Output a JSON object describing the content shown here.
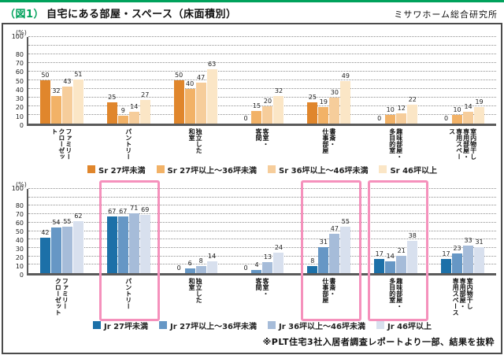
{
  "header": {
    "figure_label": "（図1）",
    "title": "自宅にある部屋・スペース（床面積別）",
    "source": "ミサワホーム総合研究所"
  },
  "footnote": "※PLT住宅3社入居者調査レポートより一部、結果を抜粋",
  "colors": {
    "accent_green": "#00a25c",
    "highlight_pink": "#f591bc",
    "axis_gray": "#5a5a5a",
    "sr_series": [
      "#e0862c",
      "#f2b267",
      "#f6cd9b",
      "#fbe6c6"
    ],
    "jr_series": [
      "#1c70a8",
      "#6697c5",
      "#a6bcd9",
      "#d8e0ee"
    ]
  },
  "chart_data": [
    {
      "type": "bar",
      "unit": "(%)",
      "ylim": [
        0,
        100
      ],
      "gridline_step": 10,
      "grid": "dotted-horizontal",
      "ytick_labels": [
        "100",
        "80",
        "70",
        "60",
        "50",
        "40",
        "30",
        "20",
        "10",
        "0"
      ],
      "legend_position": "bottom-center",
      "categories": [
        "ファミリー\nクローゼット",
        "パントリー",
        "独立した\n和室",
        "客室・\n客間",
        "書斎・\n仕事部屋",
        "趣味部屋・\n多目的室",
        "室内物干し\n専用部屋・\n専用スペース"
      ],
      "series": [
        {
          "name": "Sr 27坪未満",
          "color": "#e0862c",
          "values": [
            50,
            25,
            50,
            0,
            25,
            0,
            0
          ]
        },
        {
          "name": "Sr 27坪以上〜36坪未満",
          "color": "#f2b267",
          "values": [
            32,
            9,
            40,
            15,
            19,
            10,
            10
          ]
        },
        {
          "name": "Sr 36坪以上〜46坪未満",
          "color": "#f6cd9b",
          "values": [
            43,
            14,
            47,
            20,
            30,
            12,
            14
          ]
        },
        {
          "name": "Sr 46坪以上",
          "color": "#fbe6c6",
          "values": [
            51,
            27,
            63,
            32,
            49,
            22,
            19
          ]
        }
      ],
      "highlights": []
    },
    {
      "type": "bar",
      "unit": "(%)",
      "ylim": [
        0,
        100
      ],
      "gridline_step": 10,
      "grid": "dotted-horizontal",
      "ytick_labels": [
        "100",
        "80",
        "70",
        "60",
        "50",
        "40",
        "30",
        "20",
        "10",
        "0"
      ],
      "legend_position": "bottom-center",
      "categories": [
        "ファミリー\nクローゼット",
        "パントリー",
        "独立した\n和室",
        "客室・\n客間",
        "書斎・\n仕事部屋",
        "趣味部屋・\n多目的室",
        "室内物干し\n専用部屋・\n専用スペース"
      ],
      "series": [
        {
          "name": "Jr 27坪未満",
          "color": "#1c70a8",
          "values": [
            42,
            67,
            0,
            0,
            8,
            17,
            17
          ]
        },
        {
          "name": "Jr 27坪以上〜36坪未満",
          "color": "#6697c5",
          "values": [
            54,
            67,
            6,
            4,
            31,
            14,
            23
          ]
        },
        {
          "name": "Jr 36坪以上〜46坪未満",
          "color": "#a6bcd9",
          "values": [
            55,
            71,
            8,
            13,
            47,
            21,
            33
          ]
        },
        {
          "name": "Jr 46坪以上",
          "color": "#d8e0ee",
          "values": [
            62,
            69,
            14,
            24,
            55,
            38,
            31
          ]
        }
      ],
      "highlights": [
        1,
        4,
        5
      ]
    }
  ]
}
